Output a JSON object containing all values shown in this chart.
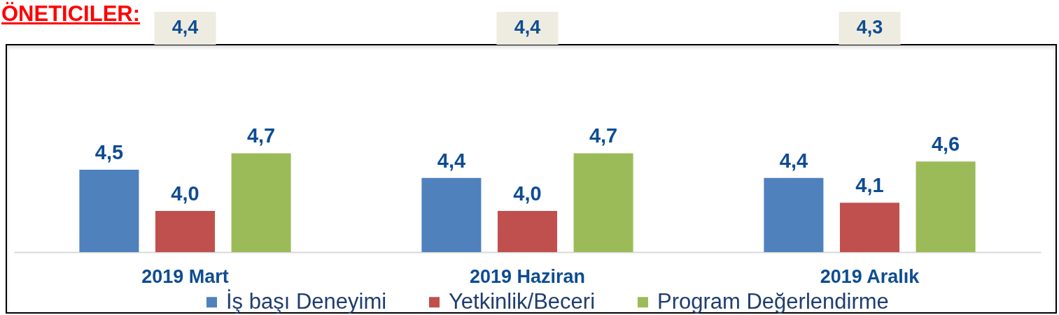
{
  "chart_data": {
    "type": "bar",
    "title": "ÖNETICILER:",
    "categories": [
      "2019 Mart",
      "2019 Haziran",
      "2019 Aralık"
    ],
    "series": [
      {
        "name": "İş başı Deneyimi",
        "color": "#4f81bd",
        "values": [
          4.5,
          4.4,
          4.4
        ],
        "value_labels": [
          "4,5",
          "4,4",
          "4,4"
        ]
      },
      {
        "name": "Yetkinlik/Beceri",
        "color": "#c0504d",
        "values": [
          4.0,
          4.0,
          4.1
        ],
        "value_labels": [
          "4,0",
          "4,0",
          "4,1"
        ]
      },
      {
        "name": "Program Değerlendirme",
        "color": "#9bbb59",
        "values": [
          4.7,
          4.7,
          4.6
        ],
        "value_labels": [
          "4,7",
          "4,7",
          "4,6"
        ]
      }
    ],
    "ylim": [
      3.5,
      6
    ],
    "tick_labels": "x",
    "legend": "bottom",
    "annotations": [
      "4,4",
      "4,4",
      "4,3"
    ]
  }
}
